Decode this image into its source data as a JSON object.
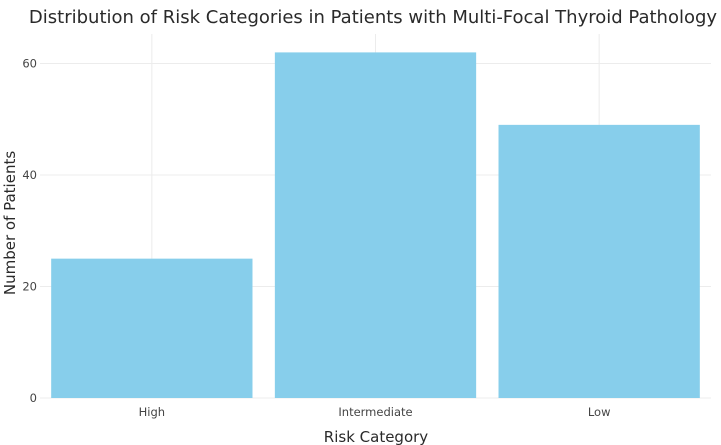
{
  "chart_data": {
    "type": "bar",
    "title": "Distribution of Risk Categories in Patients with Multi-Focal Thyroid Pathology",
    "xlabel": "Risk Category",
    "ylabel": "Number of Patients",
    "categories": [
      "High",
      "Intermediate",
      "Low"
    ],
    "values": [
      25,
      62,
      49
    ],
    "ylim": [
      0,
      65.3
    ],
    "yticks": [
      0,
      20,
      40,
      60
    ],
    "grid": true,
    "legend": "none",
    "bar_color": "#87CEEB"
  }
}
